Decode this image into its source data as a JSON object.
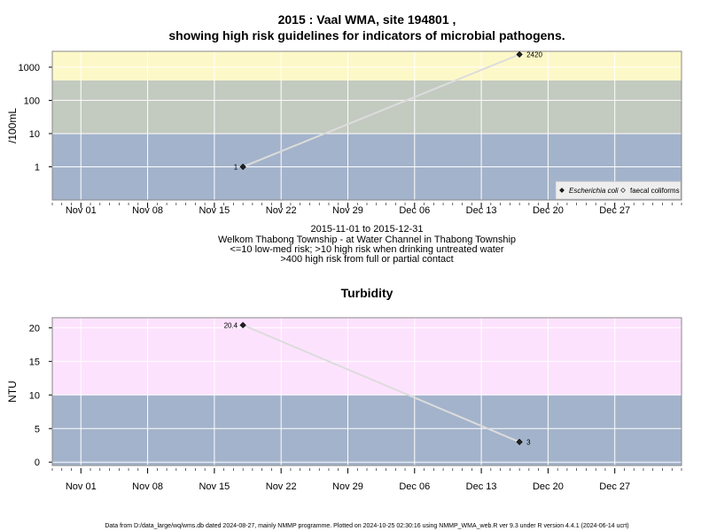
{
  "colors": {
    "low_band": "#a3b3cb",
    "mid_band": "#c3cac0",
    "high_band": "#fdf8c8",
    "turb_high_band": "#fde2fd",
    "grid": "#ffffff",
    "line": "#dcdcdc",
    "point": "#222222",
    "frame": "#888888"
  },
  "header": {
    "title_line1": "2015 : Vaal WMA, site 194801 ,",
    "title_line2": "showing high risk guidelines for indicators of microbial pathogens."
  },
  "x_ticks": [
    "Nov 01",
    "Nov 08",
    "Nov 15",
    "Nov 22",
    "Nov 29",
    "Dec 06",
    "Dec 13",
    "Dec 20",
    "Dec 27"
  ],
  "info": {
    "date_range": "2015-11-01 to 2015-12-31",
    "site_name": "Welkom Thabong Township - at Water Channel in Thabong Township",
    "guideline_1": "<=10 low-med risk; >10 high risk when drinking untreated water",
    "guideline_2": ">400 high risk from full or partial contact"
  },
  "legend": {
    "item1": "Escherichia coli",
    "item2": "faecal coliforms"
  },
  "turbidity_title": "Turbidity",
  "footer": "Data from D:/data_large/wq/wms.db dated 2024-08-27, mainly NMMP programme. Plotted on 2024-10-25 02:30:16 using NMMP_WMA_web.R ver 9.3 under R version 4.4.1 (2024-06-14 ucrt)",
  "chart_data": [
    {
      "type": "line",
      "ylabel": "/100mL",
      "y_scale": "log",
      "ylim": [
        0.1,
        3000
      ],
      "y_ticks": [
        "1",
        "10",
        "100",
        "1000"
      ],
      "x_range": [
        "2015-10-29",
        "2016-01-03"
      ],
      "bands": [
        {
          "from": 0.1,
          "to": 10,
          "color": "#a3b3cb"
        },
        {
          "from": 10,
          "to": 400,
          "color": "#c3cac0"
        },
        {
          "from": 400,
          "to": 3000,
          "color": "#fdf8c8"
        }
      ],
      "legend_position": "bottom-right",
      "series": [
        {
          "name": "Escherichia coli",
          "marker": "filled-diamond",
          "points": [
            {
              "x": "2015-11-18",
              "y": 1,
              "label": "1"
            },
            {
              "x": "2015-12-17",
              "y": 2420,
              "label": "2420"
            }
          ]
        }
      ]
    },
    {
      "type": "line",
      "title": "Turbidity",
      "ylabel": "NTU",
      "y_scale": "linear",
      "ylim": [
        -0.5,
        21.5
      ],
      "y_ticks": [
        "0",
        "5",
        "10",
        "15",
        "20"
      ],
      "x_range": [
        "2015-10-29",
        "2016-01-03"
      ],
      "bands": [
        {
          "from": -0.5,
          "to": 10,
          "color": "#a3b3cb"
        },
        {
          "from": 10,
          "to": 21.5,
          "color": "#fde2fd"
        }
      ],
      "series": [
        {
          "marker": "filled-diamond",
          "points": [
            {
              "x": "2015-11-18",
              "y": 20.4,
              "label": "20.4"
            },
            {
              "x": "2015-12-17",
              "y": 3,
              "label": "3"
            }
          ]
        }
      ]
    }
  ]
}
